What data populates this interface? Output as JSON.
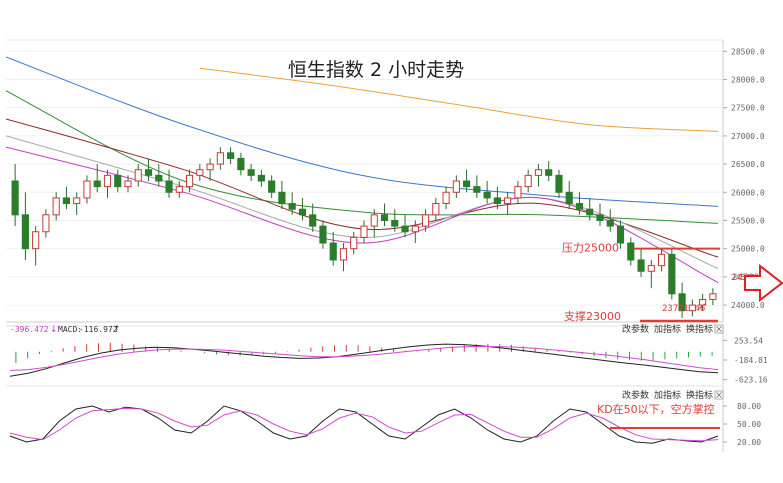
{
  "chart_data": [
    {
      "type": "candlestick",
      "title": "恒生指数 2 小时走势",
      "y_axis": {
        "ticks": [
          28500,
          28000,
          27500,
          27000,
          26500,
          26000,
          25500,
          25000,
          24500,
          24000
        ],
        "ylim": [
          23700,
          28700
        ]
      },
      "annotations": {
        "resistance_label": "压力25000",
        "resistance_value": 25000,
        "support_label": "支撑23000",
        "low_label": "23771.46",
        "low_value": 23771.46,
        "tick_overlay": "24500.0"
      },
      "ohlc": [
        [
          26200,
          26500,
          25400,
          25600
        ],
        [
          25600,
          26000,
          24800,
          25000
        ],
        [
          25000,
          25400,
          24700,
          25300
        ],
        [
          25300,
          25700,
          25200,
          25600
        ],
        [
          25600,
          26000,
          25500,
          25900
        ],
        [
          25900,
          26100,
          25700,
          25800
        ],
        [
          25800,
          26000,
          25600,
          25900
        ],
        [
          25900,
          26300,
          25800,
          26200
        ],
        [
          26200,
          26500,
          26000,
          26100
        ],
        [
          26100,
          26400,
          25900,
          26300
        ],
        [
          26300,
          26400,
          26000,
          26100
        ],
        [
          26100,
          26300,
          26000,
          26200
        ],
        [
          26200,
          26500,
          26100,
          26400
        ],
        [
          26400,
          26600,
          26200,
          26300
        ],
        [
          26300,
          26500,
          26100,
          26200
        ],
        [
          26200,
          26400,
          25900,
          26000
        ],
        [
          26000,
          26200,
          25900,
          26100
        ],
        [
          26100,
          26400,
          26000,
          26300
        ],
        [
          26300,
          26500,
          26200,
          26400
        ],
        [
          26400,
          26600,
          26200,
          26500
        ],
        [
          26500,
          26800,
          26400,
          26700
        ],
        [
          26700,
          26800,
          26500,
          26600
        ],
        [
          26600,
          26700,
          26300,
          26400
        ],
        [
          26400,
          26500,
          26200,
          26300
        ],
        [
          26300,
          26400,
          26100,
          26200
        ],
        [
          26200,
          26300,
          25900,
          26000
        ],
        [
          26000,
          26200,
          25700,
          25800
        ],
        [
          25800,
          26000,
          25600,
          25700
        ],
        [
          25700,
          25900,
          25500,
          25600
        ],
        [
          25600,
          25800,
          25300,
          25400
        ],
        [
          25400,
          25500,
          25000,
          25100
        ],
        [
          25100,
          25300,
          24700,
          24800
        ],
        [
          24800,
          25100,
          24600,
          25000
        ],
        [
          25000,
          25300,
          24900,
          25200
        ],
        [
          25200,
          25500,
          25100,
          25400
        ],
        [
          25400,
          25700,
          25200,
          25600
        ],
        [
          25600,
          25800,
          25400,
          25500
        ],
        [
          25500,
          25700,
          25300,
          25400
        ],
        [
          25400,
          25600,
          25200,
          25300
        ],
        [
          25300,
          25500,
          25100,
          25400
        ],
        [
          25400,
          25700,
          25300,
          25600
        ],
        [
          25600,
          25900,
          25500,
          25800
        ],
        [
          25800,
          26100,
          25700,
          26000
        ],
        [
          26000,
          26300,
          25900,
          26200
        ],
        [
          26200,
          26400,
          26000,
          26100
        ],
        [
          26100,
          26300,
          25900,
          26000
        ],
        [
          26000,
          26200,
          25800,
          25900
        ],
        [
          25900,
          26100,
          25700,
          25800
        ],
        [
          25800,
          26000,
          25600,
          25900
        ],
        [
          25900,
          26200,
          25800,
          26100
        ],
        [
          26100,
          26400,
          26000,
          26300
        ],
        [
          26300,
          26500,
          26100,
          26400
        ],
        [
          26400,
          26550,
          26200,
          26300
        ],
        [
          26300,
          26400,
          25900,
          26000
        ],
        [
          26000,
          26200,
          25700,
          25800
        ],
        [
          25800,
          26000,
          25600,
          25700
        ],
        [
          25700,
          25900,
          25500,
          25600
        ],
        [
          25600,
          25800,
          25400,
          25500
        ],
        [
          25500,
          25700,
          25300,
          25400
        ],
        [
          25400,
          25500,
          25000,
          25100
        ],
        [
          25100,
          25200,
          24700,
          24800
        ],
        [
          24800,
          25000,
          24500,
          24600
        ],
        [
          24600,
          24800,
          24300,
          24700
        ],
        [
          24700,
          25000,
          24600,
          24900
        ],
        [
          24900,
          25000,
          24100,
          24200
        ],
        [
          24200,
          24400,
          23771.46,
          23900
        ],
        [
          23900,
          24100,
          23800,
          24000
        ],
        [
          24000,
          24200,
          23900,
          24100
        ],
        [
          24100,
          24300,
          24000,
          24200
        ]
      ],
      "moving_averages": [
        {
          "name": "MA-gold",
          "color": "#e8a23c",
          "values": [
            28200,
            27900,
            27550,
            27200,
            27080
          ]
        },
        {
          "name": "MA-blue",
          "color": "#3a78c8",
          "values": [
            28400,
            27200,
            26300,
            25950,
            25750
          ]
        },
        {
          "name": "MA-green",
          "color": "#3a8a3a",
          "values": [
            27800,
            26200,
            25650,
            25600,
            25450
          ]
        },
        {
          "name": "MA-darkred",
          "color": "#8b2b2b",
          "values": [
            27300,
            26400,
            25350,
            25800,
            24850
          ]
        },
        {
          "name": "MA-gray",
          "color": "#a8a8a8",
          "values": [
            27000,
            26100,
            25200,
            25900,
            24650
          ]
        },
        {
          "name": "MA-magenta",
          "color": "#c040c0",
          "values": [
            26800,
            26000,
            25100,
            25900,
            24400
          ]
        }
      ]
    },
    {
      "type": "bar",
      "indicator": "MACD",
      "header": {
        "value1": "-396.472",
        "macd_label": "MACD:",
        "macd_value": "-116.972"
      },
      "y_ticks": [
        "253.54",
        "-184.81",
        "-623.16"
      ],
      "ylim": [
        -700,
        330
      ],
      "buttons": [
        "改参数",
        "加指标",
        "换指标"
      ],
      "histogram": [
        -250,
        -150,
        -50,
        20,
        80,
        130,
        170,
        190,
        200,
        180,
        160,
        120,
        90,
        60,
        30,
        0,
        -30,
        -60,
        -80,
        -90,
        -80,
        -60,
        -30,
        10,
        50,
        90,
        120,
        140,
        150,
        140,
        120,
        90,
        60,
        30,
        10,
        40,
        80,
        120,
        150,
        170,
        180,
        170,
        150,
        120,
        90,
        50,
        20,
        -20,
        -60,
        -100,
        -140,
        -170,
        -190,
        -200,
        -190,
        -170,
        -150,
        -130,
        -110,
        -90
      ],
      "dif": [
        -550,
        -480,
        -380,
        -250,
        -130,
        -30,
        40,
        80,
        100,
        90,
        60,
        20,
        -20,
        -60,
        -100,
        -130,
        -150,
        -140,
        -110,
        -60,
        0,
        60,
        110,
        150,
        170,
        160,
        130,
        90,
        40,
        -10,
        -60,
        -110,
        -160,
        -210,
        -260,
        -300,
        -350,
        -400,
        -450,
        -470
      ],
      "dea": [
        -420,
        -400,
        -350,
        -280,
        -200,
        -120,
        -50,
        0,
        40,
        60,
        60,
        50,
        30,
        0,
        -30,
        -60,
        -90,
        -110,
        -110,
        -95,
        -70,
        -30,
        10,
        50,
        90,
        110,
        120,
        115,
        100,
        75,
        40,
        0,
        -40,
        -80,
        -130,
        -180,
        -240,
        -300,
        -360,
        -400
      ]
    },
    {
      "type": "line",
      "indicator": "KD",
      "y_ticks": [
        "80.00",
        "50.00",
        "20.00"
      ],
      "ylim": [
        5,
        95
      ],
      "buttons": [
        "改参数",
        "加指标",
        "换指标"
      ],
      "note": "KD在50以下，空方掌控",
      "k": [
        30,
        20,
        25,
        55,
        75,
        80,
        70,
        78,
        75,
        60,
        40,
        35,
        55,
        80,
        72,
        55,
        35,
        25,
        30,
        55,
        75,
        70,
        50,
        30,
        25,
        45,
        65,
        75,
        60,
        40,
        25,
        20,
        30,
        55,
        75,
        70,
        50,
        30,
        20,
        18,
        25,
        22,
        20,
        30
      ],
      "d": [
        35,
        28,
        24,
        40,
        60,
        72,
        74,
        76,
        75,
        68,
        55,
        45,
        48,
        65,
        72,
        65,
        50,
        38,
        32,
        42,
        60,
        68,
        62,
        45,
        35,
        38,
        52,
        65,
        66,
        52,
        38,
        28,
        28,
        42,
        60,
        68,
        60,
        45,
        32,
        25,
        24,
        23,
        22,
        24
      ]
    }
  ]
}
